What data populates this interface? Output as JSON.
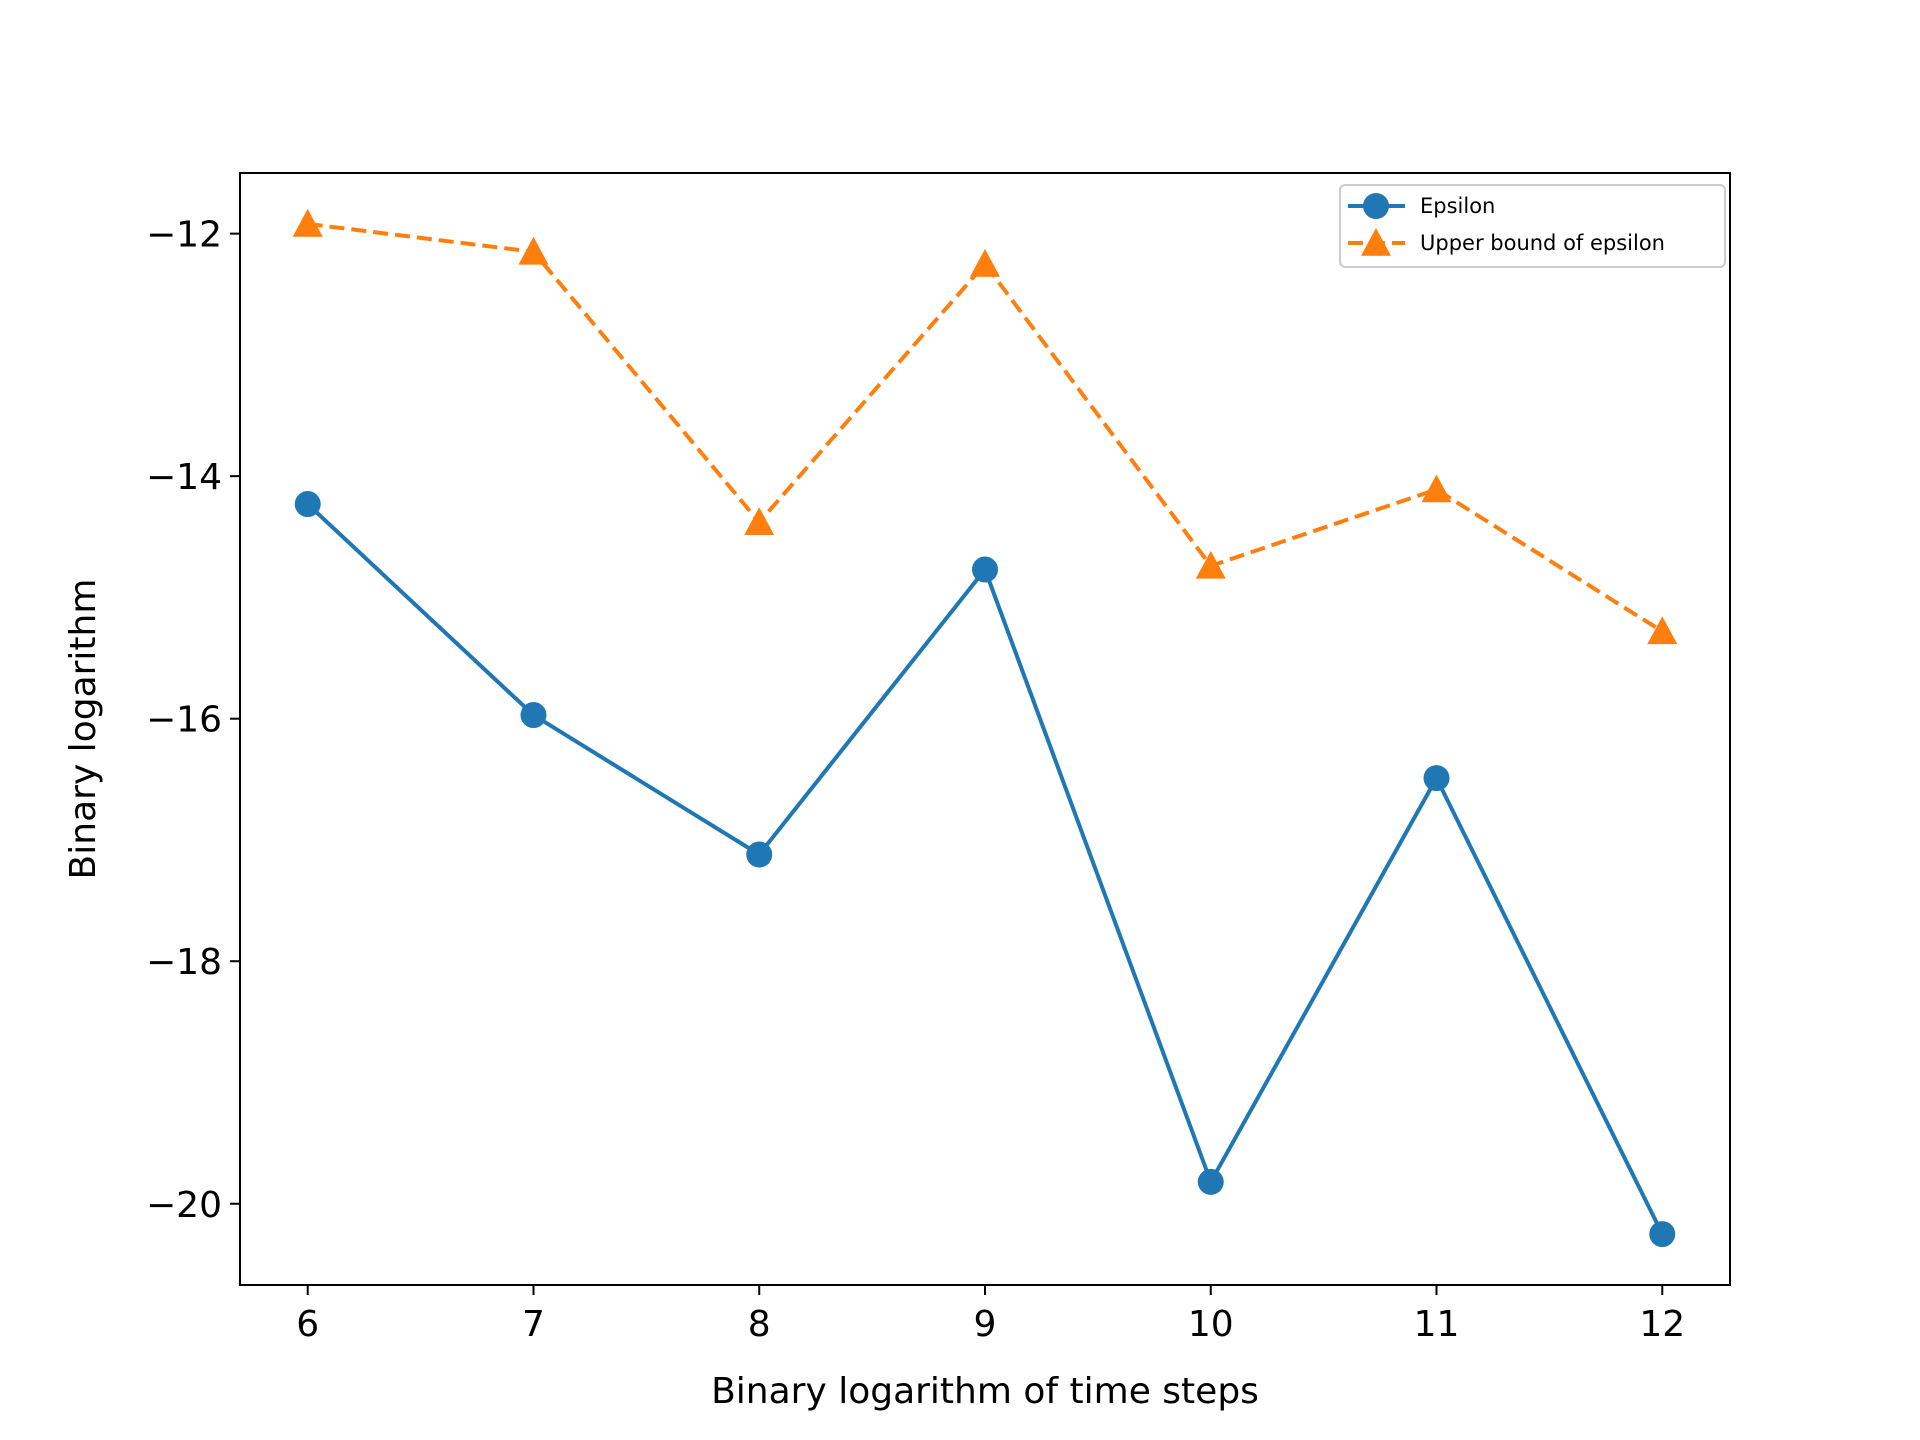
{
  "chart_data": {
    "type": "line",
    "title": "",
    "xlabel": "Binary logarithm of time steps",
    "ylabel": "Binary logarithm",
    "x": [
      6,
      7,
      8,
      9,
      10,
      11,
      12
    ],
    "xlim": [
      5.7,
      12.3
    ],
    "ylim": [
      -20.67,
      -11.5
    ],
    "xticks": [
      6,
      7,
      8,
      9,
      10,
      11,
      12
    ],
    "xtick_labels": [
      "6",
      "7",
      "8",
      "9",
      "10",
      "11",
      "12"
    ],
    "yticks": [
      -20,
      -18,
      -16,
      -14,
      -12
    ],
    "ytick_labels": [
      "−20",
      "−18",
      "−16",
      "−14",
      "−12"
    ],
    "grid": false,
    "legend_position": "top-right",
    "series": [
      {
        "name": "Epsilon",
        "values": [
          -14.23,
          -15.97,
          -17.12,
          -14.77,
          -19.82,
          -16.49,
          -20.25
        ],
        "color": "#1f77b4",
        "line_style": "solid",
        "marker": "circle"
      },
      {
        "name": "Upper bound of epsilon",
        "values": [
          -11.92,
          -12.15,
          -14.38,
          -12.25,
          -14.74,
          -14.11,
          -15.28
        ],
        "color": "#ff7f0e",
        "line_style": "dashed",
        "marker": "triangle"
      }
    ]
  }
}
